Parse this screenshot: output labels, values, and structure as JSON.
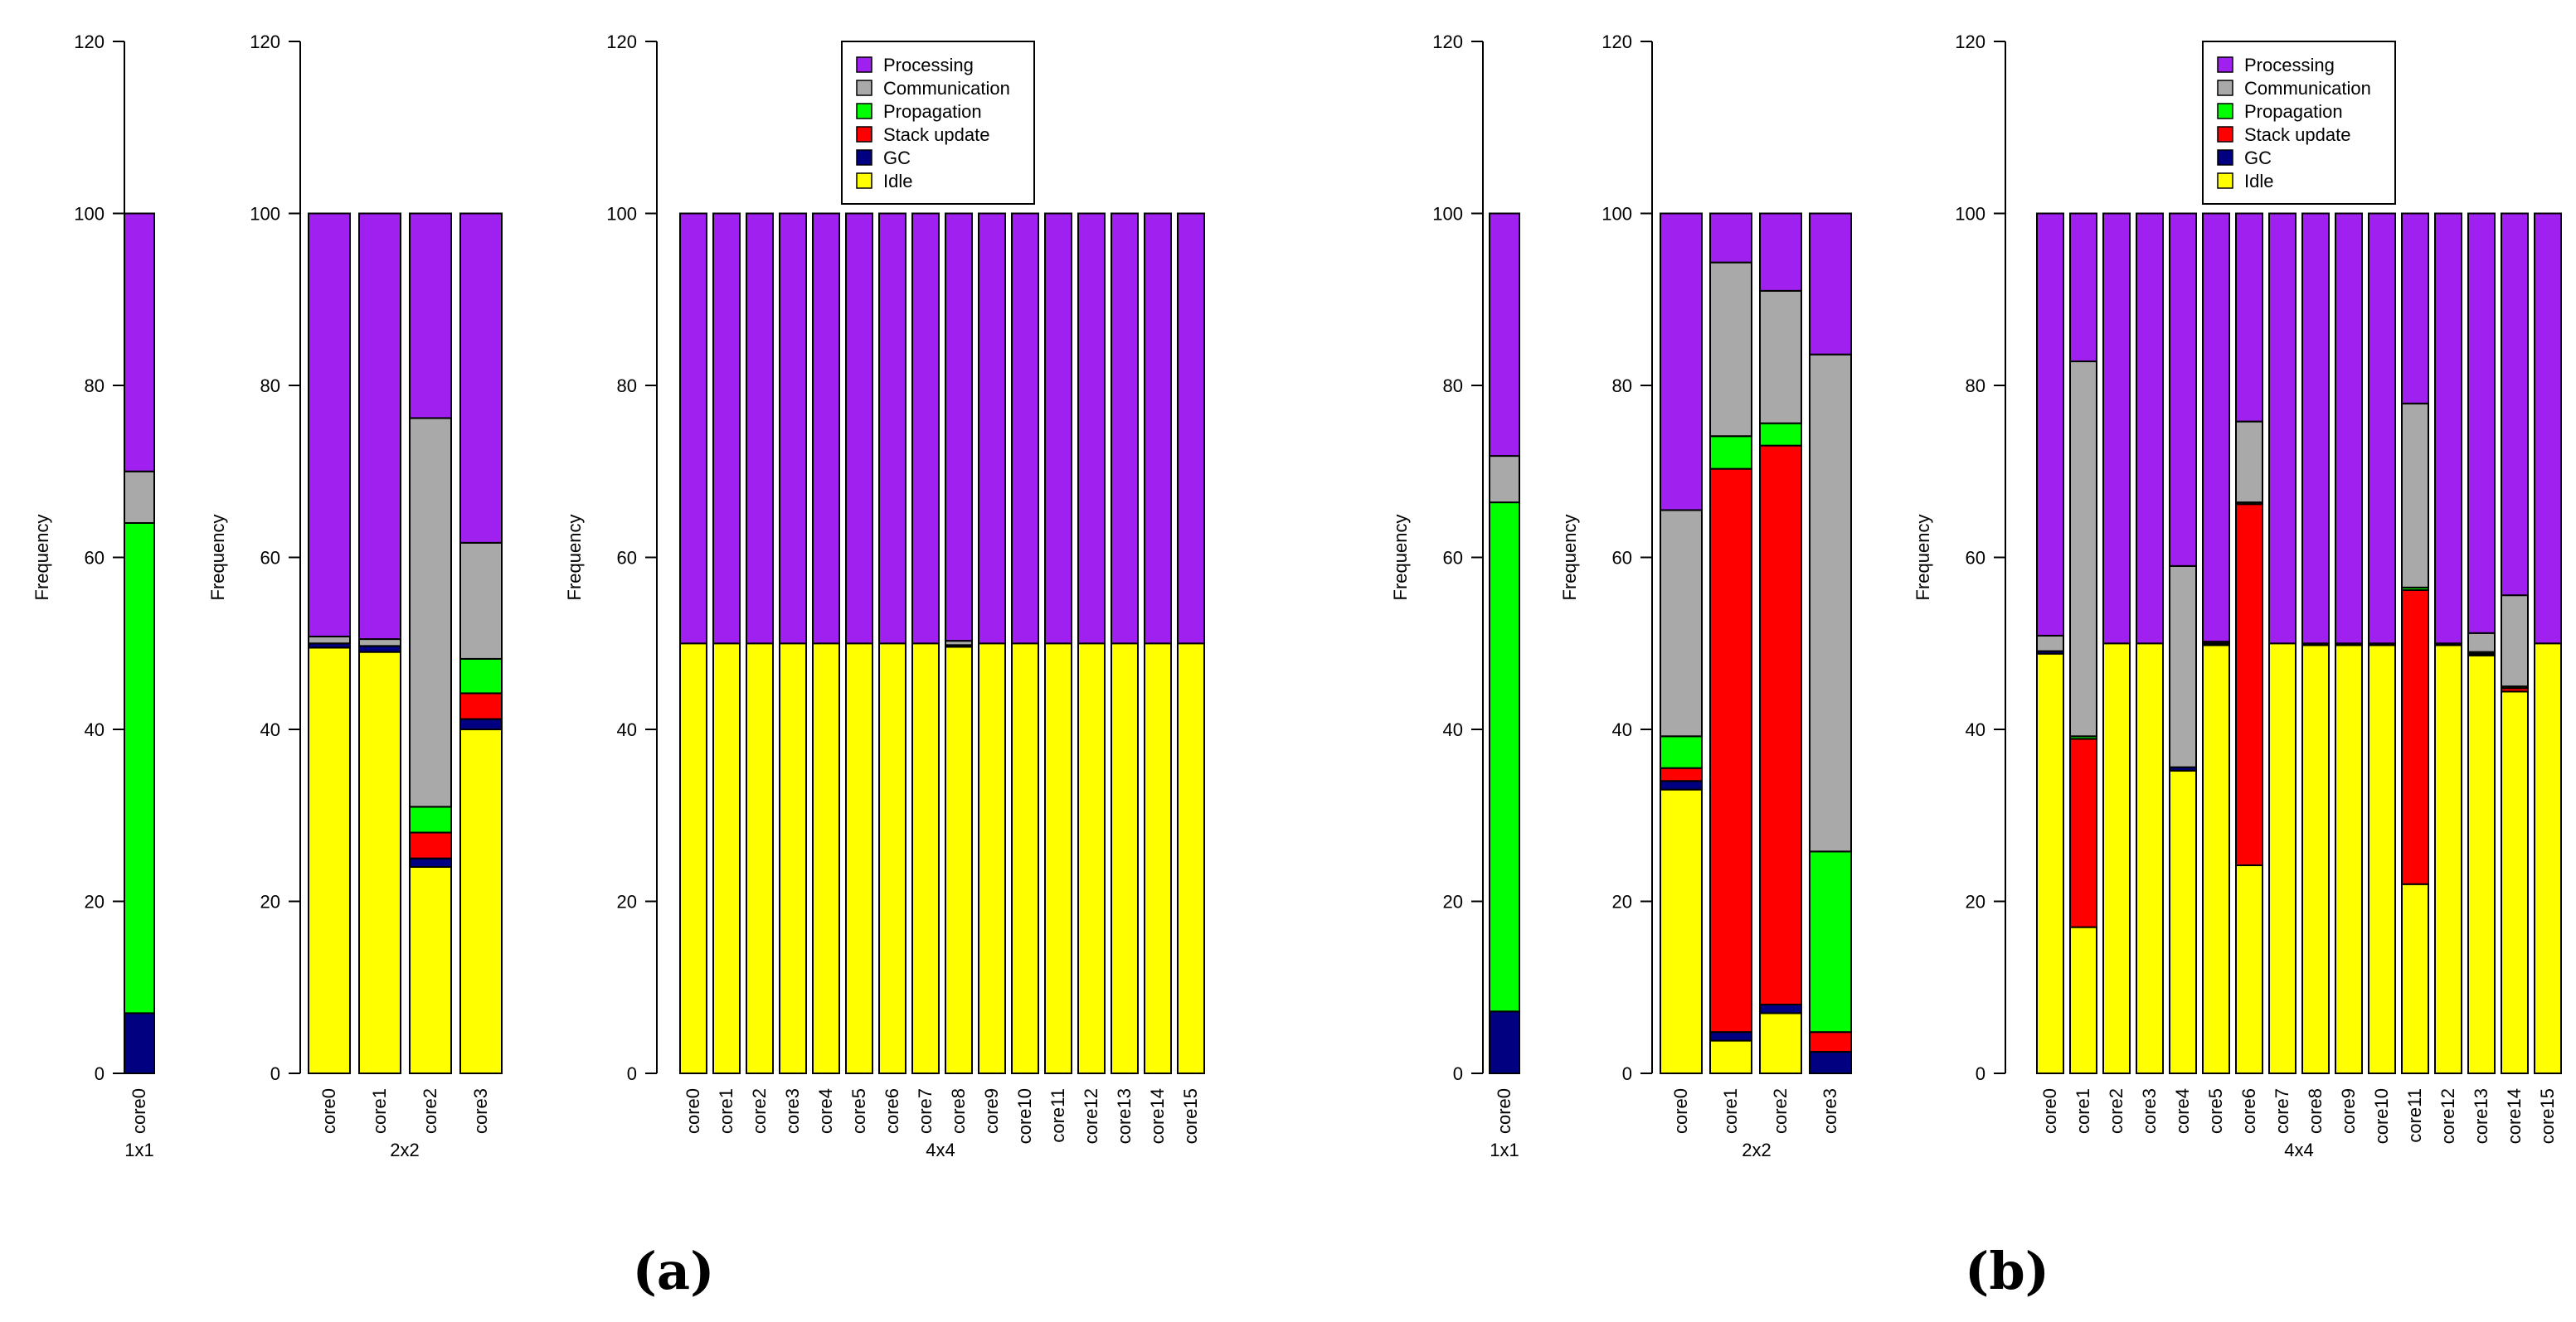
{
  "colors": {
    "Processing": "#A020F0",
    "Communication": "#A9A9A9",
    "Propagation": "#00FF00",
    "Stack update": "#FF0000",
    "GC": "#000080",
    "Idle": "#FFFF00"
  },
  "legend_items": [
    "Processing",
    "Communication",
    "Propagation",
    "Stack update",
    "GC",
    "Idle"
  ],
  "subfigure_labels": [
    "(a)",
    "(b)"
  ],
  "chart_data": [
    {
      "type": "bar",
      "stacked": true,
      "panel": "a",
      "group": "1x1",
      "ylabel": "Frequency",
      "ylim": [
        0,
        120
      ],
      "yticks": [
        0,
        20,
        40,
        60,
        80,
        100,
        120
      ],
      "categories": [
        "core0"
      ],
      "legend": false,
      "series": [
        {
          "name": "Idle",
          "values": [
            0
          ]
        },
        {
          "name": "GC",
          "values": [
            7
          ]
        },
        {
          "name": "Stack update",
          "values": [
            0
          ]
        },
        {
          "name": "Propagation",
          "values": [
            57
          ]
        },
        {
          "name": "Communication",
          "values": [
            6
          ]
        },
        {
          "name": "Processing",
          "values": [
            30
          ]
        }
      ]
    },
    {
      "type": "bar",
      "stacked": true,
      "panel": "a",
      "group": "2x2",
      "ylabel": "Frequency",
      "ylim": [
        0,
        120
      ],
      "yticks": [
        0,
        20,
        40,
        60,
        80,
        100,
        120
      ],
      "categories": [
        "core0",
        "core1",
        "core2",
        "core3"
      ],
      "legend": false,
      "series": [
        {
          "name": "Idle",
          "values": [
            49.5,
            49,
            24,
            40
          ]
        },
        {
          "name": "GC",
          "values": [
            0.5,
            0.7,
            1,
            1.2
          ]
        },
        {
          "name": "Stack update",
          "values": [
            0,
            0,
            3,
            3
          ]
        },
        {
          "name": "Propagation",
          "values": [
            0,
            0,
            3,
            4
          ]
        },
        {
          "name": "Communication",
          "values": [
            0.8,
            0.8,
            45.2,
            13.5
          ]
        },
        {
          "name": "Processing",
          "values": [
            49.2,
            49.5,
            23.8,
            38.3
          ]
        }
      ]
    },
    {
      "type": "bar",
      "stacked": true,
      "panel": "a",
      "group": "4x4",
      "ylabel": "Frequency",
      "ylim": [
        0,
        120
      ],
      "yticks": [
        0,
        20,
        40,
        60,
        80,
        100,
        120
      ],
      "categories": [
        "core0",
        "core1",
        "core2",
        "core3",
        "core4",
        "core5",
        "core6",
        "core7",
        "core8",
        "core9",
        "core10",
        "core11",
        "core12",
        "core13",
        "core14",
        "core15"
      ],
      "legend": true,
      "legend_position": "top-center",
      "series": [
        {
          "name": "Idle",
          "values": [
            50,
            50,
            50,
            50,
            50,
            50,
            50,
            50,
            49.6,
            50,
            50,
            50,
            50,
            50,
            50,
            50
          ]
        },
        {
          "name": "GC",
          "values": [
            0,
            0,
            0,
            0,
            0,
            0,
            0,
            0,
            0.2,
            0,
            0,
            0,
            0,
            0,
            0,
            0
          ]
        },
        {
          "name": "Stack update",
          "values": [
            0,
            0,
            0,
            0,
            0,
            0,
            0,
            0,
            0,
            0,
            0,
            0,
            0,
            0,
            0,
            0
          ]
        },
        {
          "name": "Propagation",
          "values": [
            0,
            0,
            0,
            0,
            0,
            0,
            0,
            0,
            0,
            0,
            0,
            0,
            0,
            0,
            0,
            0
          ]
        },
        {
          "name": "Communication",
          "values": [
            0,
            0,
            0,
            0,
            0,
            0,
            0,
            0,
            0.5,
            0,
            0,
            0,
            0,
            0,
            0,
            0
          ]
        },
        {
          "name": "Processing",
          "values": [
            50,
            50,
            50,
            50,
            50,
            50,
            50,
            50,
            49.7,
            50,
            50,
            50,
            50,
            50,
            50,
            50
          ]
        }
      ]
    },
    {
      "type": "bar",
      "stacked": true,
      "panel": "b",
      "group": "1x1",
      "ylabel": "Frequency",
      "ylim": [
        0,
        120
      ],
      "yticks": [
        0,
        20,
        40,
        60,
        80,
        100,
        120
      ],
      "categories": [
        "core0"
      ],
      "legend": false,
      "series": [
        {
          "name": "Idle",
          "values": [
            0
          ]
        },
        {
          "name": "GC",
          "values": [
            7.2
          ]
        },
        {
          "name": "Stack update",
          "values": [
            0
          ]
        },
        {
          "name": "Propagation",
          "values": [
            59.2
          ]
        },
        {
          "name": "Communication",
          "values": [
            5.4
          ]
        },
        {
          "name": "Processing",
          "values": [
            28.2
          ]
        }
      ]
    },
    {
      "type": "bar",
      "stacked": true,
      "panel": "b",
      "group": "2x2",
      "ylabel": "Frequency",
      "ylim": [
        0,
        120
      ],
      "yticks": [
        0,
        20,
        40,
        60,
        80,
        100,
        120
      ],
      "categories": [
        "core0",
        "core1",
        "core2",
        "core3"
      ],
      "legend": false,
      "series": [
        {
          "name": "Idle",
          "values": [
            33,
            3.8,
            7,
            0
          ]
        },
        {
          "name": "GC",
          "values": [
            1,
            1,
            1,
            2.5
          ]
        },
        {
          "name": "Stack update",
          "values": [
            1.5,
            65.5,
            65,
            2.3
          ]
        },
        {
          "name": "Propagation",
          "values": [
            3.7,
            3.8,
            2.6,
            21
          ]
        },
        {
          "name": "Communication",
          "values": [
            26.3,
            20.2,
            15.4,
            57.8
          ]
        },
        {
          "name": "Processing",
          "values": [
            34.5,
            5.7,
            9,
            16.4
          ]
        }
      ]
    },
    {
      "type": "bar",
      "stacked": true,
      "panel": "b",
      "group": "4x4",
      "ylabel": "Frequency",
      "ylim": [
        0,
        120
      ],
      "yticks": [
        0,
        20,
        40,
        60,
        80,
        100,
        120
      ],
      "categories": [
        "core0",
        "core1",
        "core2",
        "core3",
        "core4",
        "core5",
        "core6",
        "core7",
        "core8",
        "core9",
        "core10",
        "core11",
        "core12",
        "core13",
        "core14",
        "core15"
      ],
      "legend": true,
      "legend_position": "top-center",
      "series": [
        {
          "name": "Idle",
          "values": [
            48.8,
            17,
            50,
            50,
            35.2,
            49.8,
            24.2,
            50,
            49.8,
            49.8,
            49.8,
            22,
            49.8,
            48.6,
            44.4,
            50
          ]
        },
        {
          "name": "GC",
          "values": [
            0.3,
            0,
            0,
            0,
            0.4,
            0,
            0,
            0,
            0,
            0,
            0,
            0,
            0,
            0.2,
            0,
            0
          ]
        },
        {
          "name": "Stack update",
          "values": [
            0,
            21.9,
            0,
            0,
            0,
            0,
            42,
            0,
            0,
            0,
            0,
            34.2,
            0,
            0,
            0.4,
            0
          ]
        },
        {
          "name": "Propagation",
          "values": [
            0,
            0.3,
            0,
            0,
            0,
            0.2,
            0.2,
            0,
            0.2,
            0.2,
            0.2,
            0.3,
            0.2,
            0.2,
            0.2,
            0
          ]
        },
        {
          "name": "Communication",
          "values": [
            1.8,
            43.6,
            0,
            0,
            23.4,
            0.2,
            9.4,
            0,
            0,
            0,
            0,
            21.4,
            0,
            2.2,
            10.6,
            0
          ]
        },
        {
          "name": "Processing",
          "values": [
            49.1,
            17.2,
            50,
            50,
            41,
            49.8,
            24.2,
            50,
            50,
            50,
            50,
            22.1,
            50,
            48.8,
            44.4,
            50
          ]
        }
      ]
    }
  ]
}
